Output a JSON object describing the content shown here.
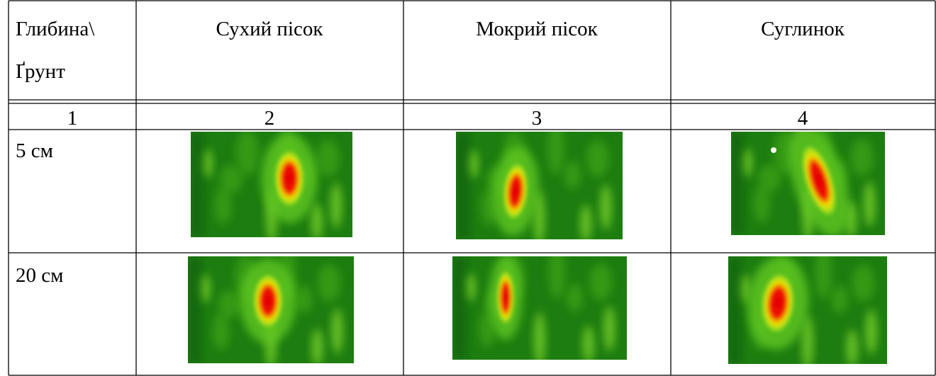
{
  "table": {
    "header": {
      "corner": [
        "Глибина\\",
        "Ґрунт"
      ],
      "columns": [
        "Сухий пісок",
        "Мокрий пісок",
        "Суглинок"
      ]
    },
    "numbers": [
      "1",
      "2",
      "3",
      "4"
    ],
    "rows": [
      "5 см",
      "20 см"
    ]
  }
}
